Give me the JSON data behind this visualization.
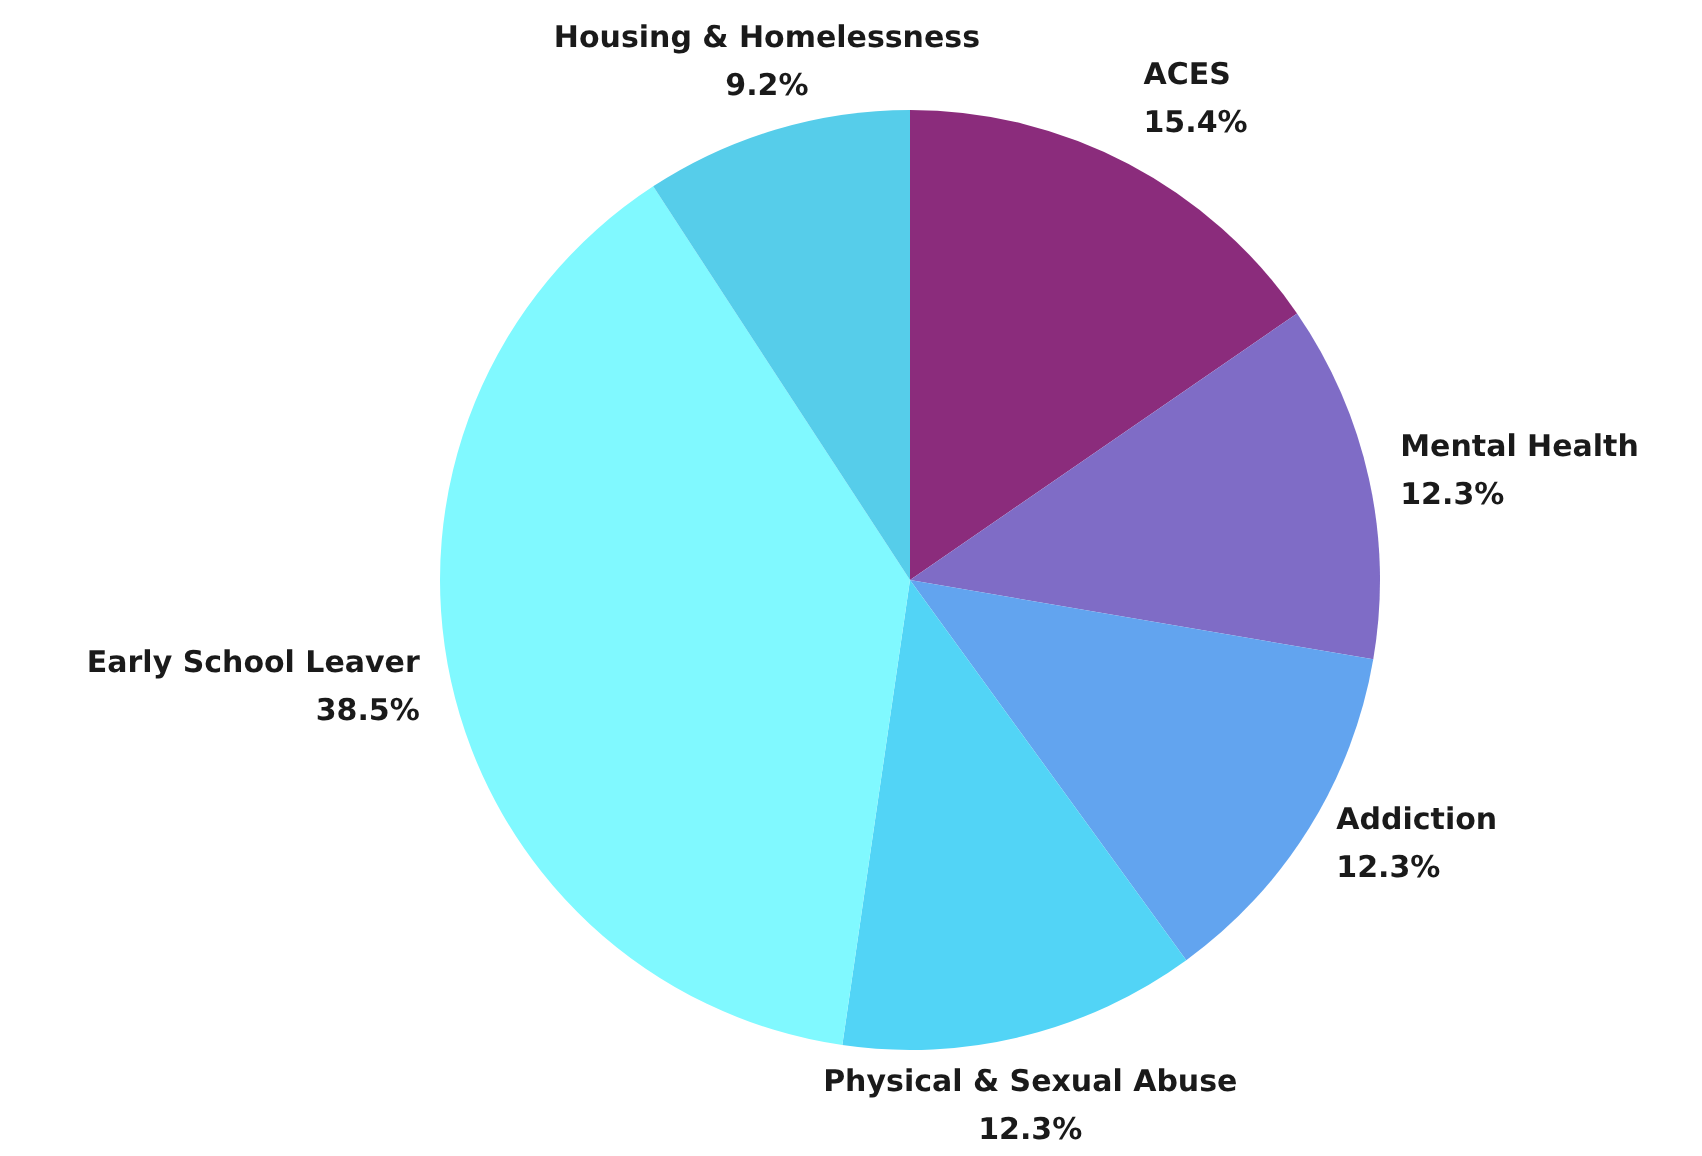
{
  "chart_data": {
    "type": "pie",
    "categories": [
      "ACES",
      "Mental Health",
      "Addiction",
      "Physical & Sexual Abuse",
      "Early School Leaver",
      "Housing & Homelessness"
    ],
    "values": [
      15.4,
      12.3,
      12.3,
      12.3,
      38.5,
      9.2
    ],
    "value_labels": [
      "15.4%",
      "12.3%",
      "12.3%",
      "12.3%",
      "38.5%",
      "9.2%"
    ],
    "colors": [
      "#8b2c7c",
      "#7f6cc6",
      "#62a4ef",
      "#52d4f6",
      "#80f9ff",
      "#56cdea"
    ]
  }
}
